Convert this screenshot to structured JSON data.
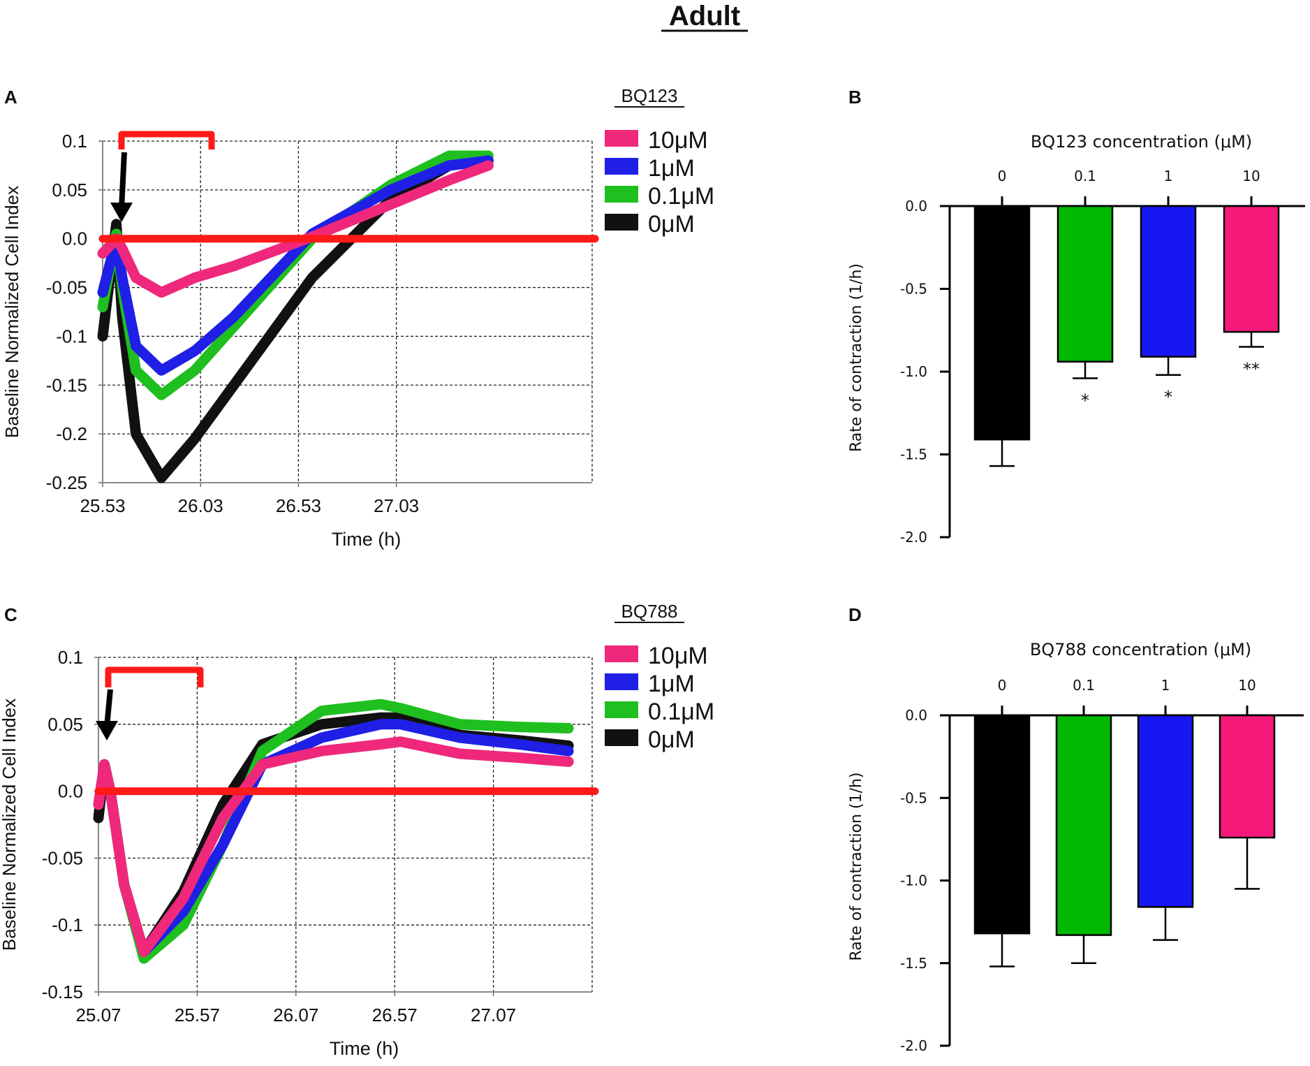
{
  "figure": {
    "title": "Adult"
  },
  "colors": {
    "c10": "#f0287c",
    "c1": "#1f1fe6",
    "c01": "#1fbf1f",
    "c0": "#111111",
    "bar10": "#f51a7a",
    "bar1": "#1717f2",
    "bar01": "#00b800",
    "bar0": "#000000",
    "baseline": "#ff1a1a"
  },
  "chart_data": [
    {
      "panel": "A",
      "type": "line",
      "drug_label": "BQ123",
      "xlabel": "Time (h)",
      "ylabel": "Baseline Normalized Cell Index",
      "xlim": [
        25.53,
        28.03
      ],
      "ylim": [
        -0.25,
        0.1
      ],
      "xticks": [
        "25.53",
        "26.03",
        "26.53",
        "27.03"
      ],
      "yticks": [
        "0.1",
        "0.05",
        "0.0",
        "-0.05",
        "-0.1",
        "-0.15",
        "-0.2",
        "-0.25"
      ],
      "grid": true,
      "legend": [
        "10μM",
        "1μM",
        "0.1μM",
        "0μM"
      ],
      "baseline_y": 0.0,
      "series": [
        {
          "name": "10μM",
          "color_key": "c10",
          "x": [
            25.53,
            25.6,
            25.63,
            25.7,
            25.83,
            26.0,
            26.2,
            26.6,
            27.0,
            27.3,
            27.5
          ],
          "y": [
            -0.015,
            0.0,
            -0.01,
            -0.04,
            -0.055,
            -0.04,
            -0.028,
            0.002,
            0.035,
            0.06,
            0.075
          ]
        },
        {
          "name": "1μM",
          "color_key": "c1",
          "x": [
            25.53,
            25.6,
            25.63,
            25.7,
            25.83,
            26.0,
            26.2,
            26.6,
            27.0,
            27.3,
            27.5
          ],
          "y": [
            -0.055,
            0.0,
            -0.04,
            -0.11,
            -0.135,
            -0.115,
            -0.08,
            0.005,
            0.05,
            0.075,
            0.08
          ]
        },
        {
          "name": "0.1μM",
          "color_key": "c01",
          "x": [
            25.53,
            25.6,
            25.63,
            25.7,
            25.83,
            26.0,
            26.2,
            26.6,
            27.0,
            27.3,
            27.5
          ],
          "y": [
            -0.07,
            0.005,
            -0.05,
            -0.135,
            -0.16,
            -0.135,
            -0.09,
            0.0,
            0.055,
            0.085,
            0.085
          ]
        },
        {
          "name": "0μM",
          "color_key": "c0",
          "x": [
            25.53,
            25.6,
            25.63,
            25.7,
            25.83,
            26.0,
            26.2,
            26.6,
            27.0,
            27.3,
            27.5
          ],
          "y": [
            -0.1,
            0.015,
            -0.08,
            -0.2,
            -0.245,
            -0.205,
            -0.15,
            -0.04,
            0.04,
            0.075,
            0.08
          ]
        }
      ]
    },
    {
      "panel": "B",
      "type": "bar",
      "title": "BQ123 concentration (μM)",
      "ylabel": "Rate of contraction  (1/h)",
      "categories": [
        "0",
        "0.1",
        "1",
        "10"
      ],
      "values": [
        -1.41,
        -0.94,
        -0.91,
        -0.76
      ],
      "errors": [
        0.16,
        0.1,
        0.11,
        0.09
      ],
      "significance": [
        "",
        "*",
        "*",
        "**"
      ],
      "color_keys": [
        "bar0",
        "bar01",
        "bar1",
        "bar10"
      ],
      "ylim": [
        -2.0,
        0.0
      ],
      "yticks": [
        "0.0",
        "-0.5",
        "-1.0",
        "-1.5",
        "-2.0"
      ]
    },
    {
      "panel": "C",
      "type": "line",
      "drug_label": "BQ788",
      "xlabel": "Time (h)",
      "ylabel": "Baseline Normalized Cell Index",
      "xlim": [
        25.07,
        27.57
      ],
      "ylim": [
        -0.15,
        0.1
      ],
      "xticks": [
        "25.07",
        "25.57",
        "26.07",
        "26.57",
        "27.07"
      ],
      "yticks": [
        "0.1",
        "0.05",
        "0.0",
        "-0.05",
        "-0.1",
        "-0.15"
      ],
      "grid": true,
      "legend": [
        "10μM",
        "1μM",
        "0.1μM",
        "0μM"
      ],
      "baseline_y": 0.0,
      "series": [
        {
          "name": "10μM",
          "color_key": "c10",
          "x": [
            25.07,
            25.1,
            25.13,
            25.2,
            25.3,
            25.5,
            25.7,
            25.9,
            26.2,
            26.5,
            26.6,
            26.9,
            27.2,
            27.45
          ],
          "y": [
            -0.01,
            0.02,
            0.0,
            -0.07,
            -0.12,
            -0.08,
            -0.02,
            0.02,
            0.03,
            0.035,
            0.037,
            0.028,
            0.025,
            0.022
          ]
        },
        {
          "name": "1μM",
          "color_key": "c1",
          "x": [
            25.07,
            25.1,
            25.13,
            25.2,
            25.3,
            25.5,
            25.7,
            25.9,
            26.2,
            26.5,
            26.6,
            26.9,
            27.2,
            27.45
          ],
          "y": [
            -0.01,
            0.02,
            0.0,
            -0.07,
            -0.12,
            -0.09,
            -0.04,
            0.02,
            0.04,
            0.05,
            0.05,
            0.04,
            0.035,
            0.03
          ]
        },
        {
          "name": "0.1μM",
          "color_key": "c01",
          "x": [
            25.07,
            25.1,
            25.13,
            25.2,
            25.3,
            25.5,
            25.7,
            25.9,
            26.2,
            26.5,
            26.6,
            26.9,
            27.2,
            27.45
          ],
          "y": [
            -0.01,
            0.02,
            0.0,
            -0.07,
            -0.125,
            -0.1,
            -0.04,
            0.03,
            0.06,
            0.065,
            0.062,
            0.05,
            0.048,
            0.047
          ]
        },
        {
          "name": "0μM",
          "color_key": "c0",
          "x": [
            25.07,
            25.1,
            25.13,
            25.2,
            25.3,
            25.5,
            25.7,
            25.9,
            26.2,
            26.5,
            26.6,
            26.9,
            27.2,
            27.45
          ],
          "y": [
            -0.02,
            0.02,
            0.0,
            -0.07,
            -0.12,
            -0.075,
            -0.01,
            0.035,
            0.05,
            0.055,
            0.055,
            0.042,
            0.038,
            0.034
          ]
        }
      ]
    },
    {
      "panel": "D",
      "type": "bar",
      "title": "BQ788 concentration (μM)",
      "ylabel": "Rate of contraction  (1/h)",
      "categories": [
        "0",
        "0.1",
        "1",
        "10"
      ],
      "values": [
        -1.32,
        -1.33,
        -1.16,
        -0.74
      ],
      "errors": [
        0.2,
        0.17,
        0.2,
        0.31
      ],
      "significance": [
        "",
        "",
        "",
        ""
      ],
      "color_keys": [
        "bar0",
        "bar01",
        "bar1",
        "bar10"
      ],
      "ylim": [
        -2.0,
        0.0
      ],
      "yticks": [
        "0.0",
        "-0.5",
        "-1.0",
        "-1.5",
        "-2.0"
      ]
    }
  ]
}
